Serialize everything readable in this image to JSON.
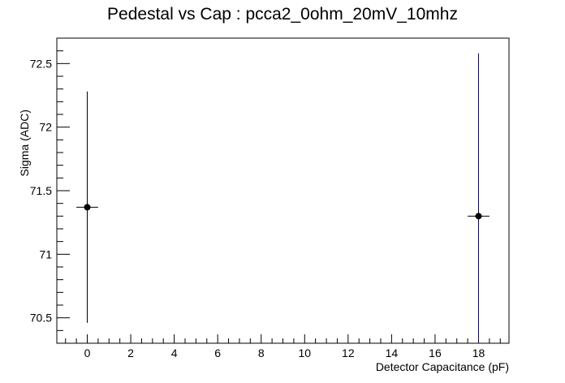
{
  "chart_data": {
    "type": "scatter",
    "title": "Pedestal vs Cap : pcca2_0ohm_20mV_10mhz",
    "xlabel": "Detector Capacitance (pF)",
    "ylabel": "Sigma (ADC)",
    "xlim": [
      -1.4,
      19.4
    ],
    "ylim": [
      70.3,
      72.7
    ],
    "x_ticks": [
      0,
      2,
      4,
      6,
      8,
      10,
      12,
      14,
      16,
      18
    ],
    "y_ticks": [
      70.5,
      71,
      71.5,
      72,
      72.5
    ],
    "x_tick_labels": [
      "0",
      "2",
      "4",
      "6",
      "8",
      "10",
      "12",
      "14",
      "16",
      "18"
    ],
    "y_tick_labels": [
      "70.5",
      "71",
      "71.5",
      "72",
      "72.5"
    ],
    "grid": false,
    "points": [
      {
        "x": 0,
        "y": 71.37,
        "x_err": 0.5,
        "y_low": 70.46,
        "y_high": 72.28,
        "color": "#000000"
      },
      {
        "x": 18,
        "y": 71.3,
        "x_err": 0.5,
        "y_low": 70.3,
        "y_high": 72.58,
        "color": "#00007f"
      }
    ]
  }
}
